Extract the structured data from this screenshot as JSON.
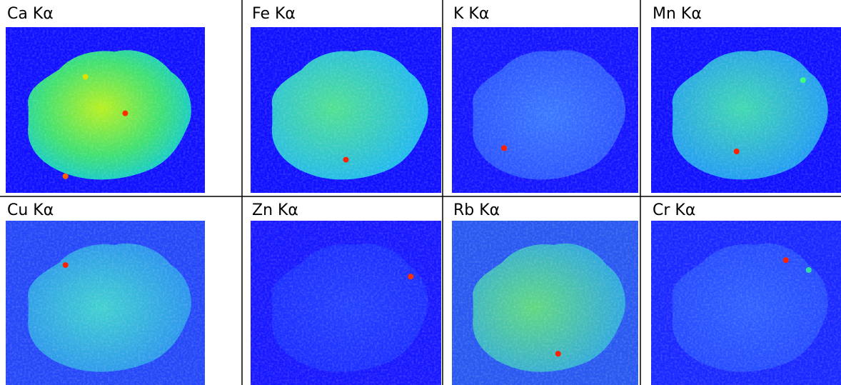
{
  "panels": [
    {
      "label": "Ca Kα"
    },
    {
      "label": "Fe Kα"
    },
    {
      "label": "K Kα"
    },
    {
      "label": "Mn Kα"
    },
    {
      "label": "Cu Kα"
    },
    {
      "label": "Zn Kα"
    },
    {
      "label": "Rb Kα"
    },
    {
      "label": "Cr Kα"
    }
  ]
}
